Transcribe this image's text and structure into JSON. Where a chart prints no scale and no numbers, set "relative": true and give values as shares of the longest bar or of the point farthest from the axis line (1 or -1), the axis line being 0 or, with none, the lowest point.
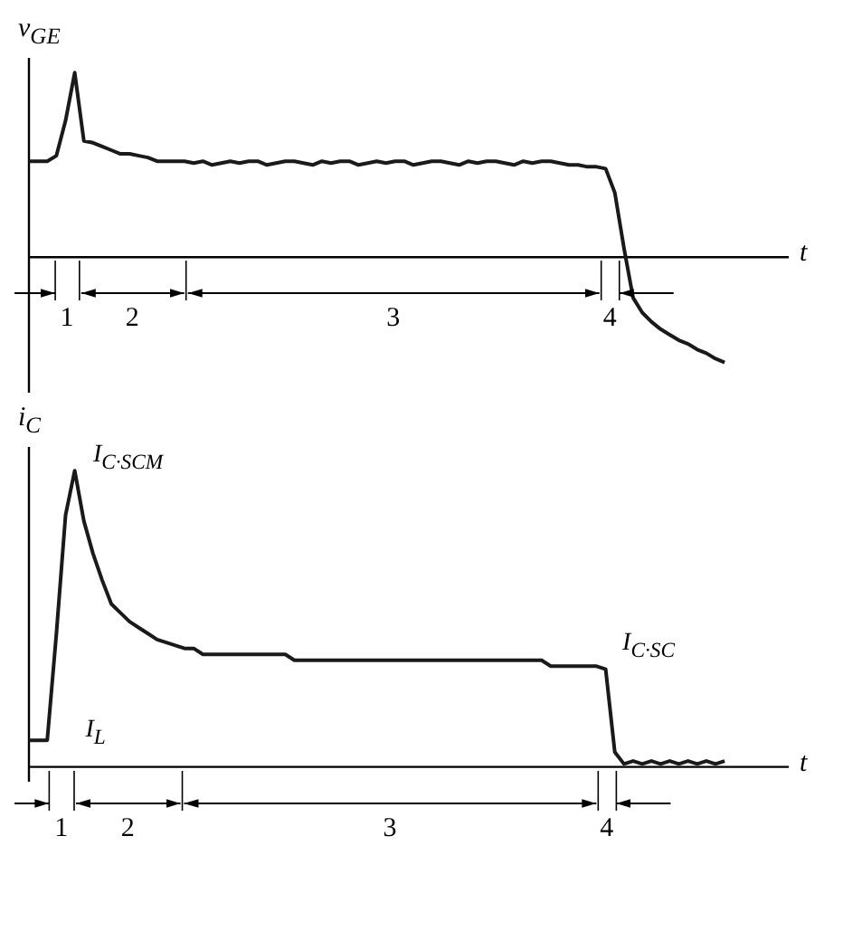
{
  "chart_data": [
    {
      "type": "line",
      "relative": true,
      "ylabel": "v$_{GE}$",
      "xlabel": "t",
      "marker": "none",
      "line_style": "solid",
      "color": "#1a1a1a",
      "categories": [
        null,
        null,
        null,
        null,
        null,
        null,
        null,
        null,
        null,
        null,
        null,
        null,
        null,
        null,
        null,
        null,
        null,
        null,
        null,
        null,
        null,
        null,
        null,
        null,
        null,
        null,
        null,
        null,
        null,
        null,
        null,
        null,
        null,
        null,
        null,
        null,
        null,
        null,
        null,
        null,
        null,
        null,
        null,
        null,
        null,
        null,
        null,
        null,
        null,
        null,
        null,
        null,
        null,
        null,
        null,
        null,
        null,
        null,
        null,
        null,
        null,
        null,
        null,
        null,
        null,
        null,
        null,
        null,
        null,
        null,
        null,
        null,
        null,
        null,
        null,
        null,
        null,
        null,
        null,
        null,
        null,
        null,
        null,
        null
      ],
      "values": [
        0.52,
        0.52,
        0.52,
        0.55,
        0.74,
        1,
        0.63,
        0.62,
        0.6,
        0.58,
        0.56,
        0.56,
        0.55,
        0.54,
        0.52,
        0.52,
        0.52,
        0.52,
        0.51,
        0.52,
        0.5,
        0.51,
        0.52,
        0.51,
        0.52,
        0.52,
        0.5,
        0.51,
        0.52,
        0.52,
        0.51,
        0.5,
        0.52,
        0.51,
        0.52,
        0.52,
        0.5,
        0.51,
        0.52,
        0.51,
        0.52,
        0.52,
        0.5,
        0.51,
        0.52,
        0.52,
        0.51,
        0.5,
        0.52,
        0.51,
        0.52,
        0.52,
        0.51,
        0.5,
        0.52,
        0.51,
        0.52,
        0.52,
        0.51,
        0.5,
        0.5,
        0.49,
        0.49,
        0.48,
        0.35,
        0.05,
        -0.22,
        -0.3,
        -0.35,
        -0.39,
        -0.42,
        -0.45,
        -0.47,
        -0.5,
        -0.52,
        -0.55,
        -0.57,
        null,
        null,
        null,
        null,
        null,
        null,
        null
      ],
      "annotations": [
        "1",
        "2",
        "3",
        "4"
      ]
    },
    {
      "type": "line",
      "relative": true,
      "ylabel": "i$_{C}$",
      "xlabel": "t",
      "marker": "none",
      "line_style": "solid",
      "color": "#1a1a1a",
      "categories": [
        null,
        null,
        null,
        null,
        null,
        null,
        null,
        null,
        null,
        null,
        null,
        null,
        null,
        null,
        null,
        null,
        null,
        null,
        null,
        null,
        null,
        null,
        null,
        null,
        null,
        null,
        null,
        null,
        null,
        null,
        null,
        null,
        null,
        null,
        null,
        null,
        null,
        null,
        null,
        null,
        null,
        null,
        null,
        null,
        null,
        null,
        null,
        null,
        null,
        null,
        null,
        null,
        null,
        null,
        null,
        null,
        null,
        null,
        null,
        null,
        null,
        null,
        null,
        null,
        null,
        null,
        null,
        null,
        null,
        null,
        null,
        null,
        null,
        null,
        null,
        null,
        null,
        null,
        null,
        null,
        null,
        null,
        null,
        null
      ],
      "values": [
        0.09,
        0.09,
        0.09,
        0.45,
        0.85,
        1,
        0.83,
        0.72,
        0.63,
        0.55,
        0.52,
        0.49,
        0.47,
        0.45,
        0.43,
        0.42,
        0.41,
        0.4,
        0.4,
        0.38,
        0.38,
        0.38,
        0.38,
        0.38,
        0.38,
        0.38,
        0.38,
        0.38,
        0.38,
        0.36,
        0.36,
        0.36,
        0.36,
        0.36,
        0.36,
        0.36,
        0.36,
        0.36,
        0.36,
        0.36,
        0.36,
        0.36,
        0.36,
        0.36,
        0.36,
        0.36,
        0.36,
        0.36,
        0.36,
        0.36,
        0.36,
        0.36,
        0.36,
        0.36,
        0.36,
        0.36,
        0.36,
        0.34,
        0.34,
        0.34,
        0.34,
        0.34,
        0.34,
        0.33,
        0.05,
        0.01,
        0.02,
        0.01,
        0.02,
        0.01,
        0.02,
        0.01,
        0.02,
        0.01,
        0.02,
        0.01,
        0.02,
        null,
        null,
        null,
        null,
        null,
        null,
        null
      ],
      "annotations": [
        "I$_{C·SCM}$",
        "I$_{C·SC}$",
        "I$_{L}$",
        "1",
        "2",
        "3",
        "4"
      ]
    }
  ]
}
